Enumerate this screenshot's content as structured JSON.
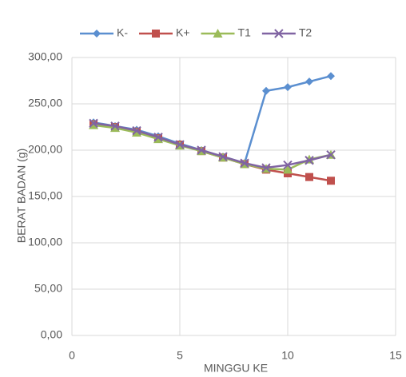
{
  "chart_data": {
    "type": "line",
    "x_label": "MINGGU KE",
    "y_label": "BERAT BADAN (g)",
    "x": [
      1,
      2,
      3,
      4,
      5,
      6,
      7,
      8,
      9,
      10,
      11,
      12
    ],
    "series": [
      {
        "name": "K-",
        "color": "#5b8fd0",
        "marker": "diamond",
        "values": [
          230,
          226,
          222,
          215,
          207,
          200,
          193,
          186,
          264,
          268,
          274,
          280
        ]
      },
      {
        "name": "K+",
        "color": "#c0504d",
        "marker": "square",
        "values": [
          228,
          225,
          220,
          213,
          206,
          199,
          192,
          185,
          179,
          175,
          171,
          167
        ]
      },
      {
        "name": "T1",
        "color": "#9bbb59",
        "marker": "triangle",
        "values": [
          227,
          224,
          219,
          212,
          205,
          199,
          192,
          185,
          180,
          179,
          190,
          195
        ]
      },
      {
        "name": "T2",
        "color": "#8064a2",
        "marker": "x",
        "values": [
          229,
          226,
          221,
          214,
          206,
          200,
          193,
          186,
          181,
          184,
          189,
          195
        ]
      }
    ],
    "xlim": [
      0,
      15
    ],
    "xticks": [
      0,
      5,
      10,
      15
    ],
    "ylim": [
      0,
      300
    ],
    "yticks": [
      {
        "value": 0,
        "label": "0,00"
      },
      {
        "value": 50,
        "label": "50,00"
      },
      {
        "value": 100,
        "label": "100,00"
      },
      {
        "value": 150,
        "label": "150,00"
      },
      {
        "value": 200,
        "label": "200,00"
      },
      {
        "value": 250,
        "label": "250,00"
      },
      {
        "value": 300,
        "label": "300,00"
      }
    ],
    "grid": true,
    "legend": "top"
  }
}
